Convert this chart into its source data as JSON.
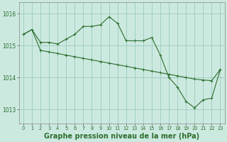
{
  "background_color": "#cce9e0",
  "plot_bg_color": "#cce9e0",
  "grid_color": "#99ccbb",
  "line_color": "#2d6e2d",
  "xlabel": "Graphe pression niveau de la mer (hPa)",
  "xlabel_fontsize": 7.0,
  "ylim": [
    1012.55,
    1016.35
  ],
  "xlim": [
    -0.5,
    23.5
  ],
  "yticks": [
    1013,
    1014,
    1015,
    1016
  ],
  "xticks": [
    0,
    1,
    2,
    3,
    4,
    5,
    6,
    7,
    8,
    9,
    10,
    11,
    12,
    13,
    14,
    15,
    16,
    17,
    18,
    19,
    20,
    21,
    22,
    23
  ],
  "series1_x": [
    0,
    1,
    2,
    3,
    4,
    5,
    6,
    7,
    8,
    9,
    10,
    11,
    12,
    13,
    14,
    15,
    16,
    17,
    18,
    19,
    20,
    21,
    22,
    23
  ],
  "series1_y": [
    1015.35,
    1015.5,
    1014.85,
    1014.8,
    1014.75,
    1014.7,
    1014.65,
    1014.6,
    1014.55,
    1014.5,
    1014.45,
    1014.4,
    1014.35,
    1014.3,
    1014.25,
    1014.2,
    1014.15,
    1014.1,
    1014.05,
    1014.0,
    1013.95,
    1013.92,
    1013.9,
    1014.25
  ],
  "series2_x": [
    0,
    1,
    2,
    3,
    4,
    5,
    6,
    7,
    8,
    9,
    10,
    11,
    12,
    13,
    14,
    15,
    16,
    17,
    18,
    19,
    20,
    21,
    22,
    23
  ],
  "series2_y": [
    1015.35,
    1015.5,
    1015.1,
    1015.1,
    1015.05,
    1015.2,
    1015.35,
    1015.6,
    1015.6,
    1015.65,
    1015.9,
    1015.7,
    1015.15,
    1015.15,
    1015.15,
    1015.25,
    1014.7,
    1014.0,
    1013.7,
    1013.25,
    1013.05,
    1013.3,
    1013.35,
    1014.25
  ]
}
